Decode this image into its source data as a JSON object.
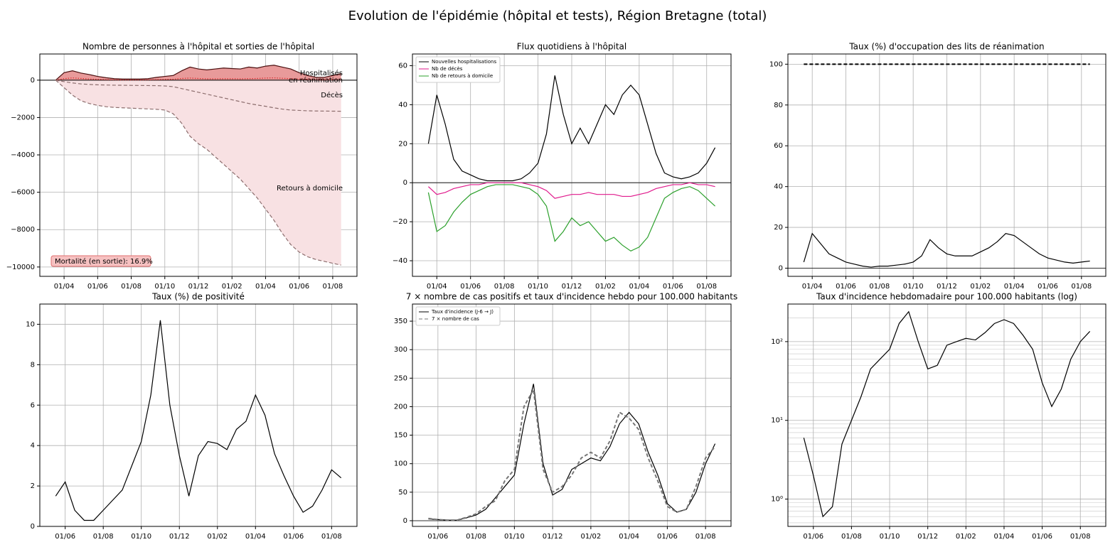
{
  "title": "Evolution de l'épidémie (hôpital et tests), Région Bretagne (total)",
  "chart_data": [
    {
      "type": "area",
      "title": "Nombre de personnes à l'hôpital et sorties de l'hôpital",
      "categories": [
        null,
        "01/04",
        null,
        null,
        null,
        "01/06",
        null,
        null,
        null,
        "01/08",
        null,
        null,
        null,
        "01/10",
        null,
        null,
        null,
        "01/12",
        null,
        null,
        null,
        "01/02",
        null,
        null,
        null,
        "01/04",
        null,
        null,
        null,
        "01/06",
        null,
        null,
        null,
        "01/08",
        null
      ],
      "series": [
        {
          "name": "Hospitalisés",
          "color": "#4a0f0f",
          "fill": "#e89a9a",
          "linestyle": "solid",
          "values": [
            0,
            400,
            500,
            380,
            300,
            200,
            130,
            80,
            60,
            60,
            60,
            80,
            150,
            200,
            250,
            500,
            700,
            600,
            550,
            600,
            650,
            620,
            600,
            700,
            650,
            750,
            800,
            700,
            600,
            400,
            250,
            150,
            150,
            250,
            350
          ]
        },
        {
          "name": "en réanimation",
          "color": "#d62728",
          "linestyle": "dotted",
          "values": [
            0,
            80,
            120,
            90,
            60,
            40,
            25,
            15,
            10,
            10,
            10,
            15,
            25,
            35,
            50,
            90,
            110,
            90,
            70,
            70,
            75,
            75,
            70,
            80,
            90,
            110,
            120,
            100,
            80,
            60,
            40,
            25,
            20,
            25,
            30
          ]
        },
        {
          "name": "Décès",
          "color": "#8c6d6d",
          "linestyle": "dashed",
          "values": [
            0,
            -80,
            -150,
            -200,
            -230,
            -250,
            -260,
            -270,
            -275,
            -280,
            -285,
            -290,
            -295,
            -310,
            -350,
            -450,
            -550,
            -650,
            -750,
            -850,
            -950,
            -1050,
            -1150,
            -1250,
            -1330,
            -1400,
            -1480,
            -1550,
            -1600,
            -1620,
            -1640,
            -1650,
            -1655,
            -1660,
            -1665
          ]
        },
        {
          "name": "Retours à domicile",
          "color": "#8c6d6d",
          "fill": "#f8e1e3",
          "linestyle": "dashed",
          "values": [
            0,
            -400,
            -800,
            -1100,
            -1250,
            -1350,
            -1420,
            -1460,
            -1480,
            -1500,
            -1520,
            -1540,
            -1560,
            -1600,
            -1800,
            -2300,
            -3000,
            -3400,
            -3700,
            -4100,
            -4500,
            -4900,
            -5300,
            -5800,
            -6300,
            -6900,
            -7500,
            -8200,
            -8800,
            -9200,
            -9450,
            -9600,
            -9700,
            -9800,
            -9900
          ]
        }
      ],
      "series_labels": "inline",
      "annotation": "Mortalité (en sortie): 16.9%",
      "ylim": [
        -10500,
        1400
      ],
      "yticks": [
        0,
        {
          "value": -2000,
          "label": "−2000"
        },
        {
          "value": -4000,
          "label": "−4000"
        },
        {
          "value": -6000,
          "label": "−6000"
        },
        {
          "value": -8000,
          "label": "−8000"
        },
        {
          "value": -10000,
          "label": "−10000"
        }
      ],
      "grid": true
    },
    {
      "type": "line",
      "title": "Flux quotidiens à l'hôpital",
      "categories": [
        null,
        "01/04",
        null,
        null,
        null,
        "01/06",
        null,
        null,
        null,
        "01/08",
        null,
        null,
        null,
        "01/10",
        null,
        null,
        null,
        "01/12",
        null,
        null,
        null,
        "01/02",
        null,
        null,
        null,
        "01/04",
        null,
        null,
        null,
        "01/06",
        null,
        null,
        null,
        "01/08",
        null
      ],
      "series": [
        {
          "name": "Nouvelles hospitalisations",
          "color": "#000000",
          "linestyle": "solid",
          "values": [
            20,
            45,
            30,
            12,
            6,
            4,
            2,
            1,
            1,
            1,
            1,
            2,
            5,
            10,
            25,
            55,
            35,
            20,
            28,
            20,
            30,
            40,
            35,
            45,
            50,
            45,
            30,
            15,
            5,
            3,
            2,
            3,
            5,
            10,
            18
          ]
        },
        {
          "name": "Nb de décès",
          "color": "#e0198c",
          "linestyle": "solid",
          "values": [
            -2,
            -6,
            -5,
            -3,
            -2,
            -1,
            -1,
            0,
            0,
            0,
            0,
            0,
            -1,
            -2,
            -4,
            -8,
            -7,
            -6,
            -6,
            -5,
            -6,
            -6,
            -6,
            -7,
            -7,
            -6,
            -5,
            -3,
            -2,
            -1,
            -1,
            0,
            -1,
            -1,
            -2
          ]
        },
        {
          "name": "Nb de retours à domicile",
          "color": "#2ca02c",
          "linestyle": "solid",
          "values": [
            -5,
            -25,
            -22,
            -15,
            -10,
            -6,
            -4,
            -2,
            -1,
            -1,
            -1,
            -2,
            -3,
            -6,
            -12,
            -30,
            -25,
            -18,
            -22,
            -20,
            -25,
            -30,
            -28,
            -32,
            -35,
            -33,
            -28,
            -18,
            -8,
            -5,
            -3,
            -2,
            -4,
            -8,
            -12
          ]
        }
      ],
      "legend": "upper left",
      "ylim": [
        -48,
        66
      ],
      "yticks": [
        {
          "value": -40,
          "label": "−40"
        },
        {
          "value": -20,
          "label": "−20"
        },
        0,
        20,
        40,
        60
      ],
      "grid": true
    },
    {
      "type": "line",
      "title": "Taux (%) d'occupation des lits de réanimation",
      "categories": [
        null,
        "01/04",
        null,
        null,
        null,
        "01/06",
        null,
        null,
        null,
        "01/08",
        null,
        null,
        null,
        "01/10",
        null,
        null,
        null,
        "01/12",
        null,
        null,
        null,
        "01/02",
        null,
        null,
        null,
        "01/04",
        null,
        null,
        null,
        "01/06",
        null,
        null,
        null,
        "01/08",
        null
      ],
      "series": [
        {
          "color": "#000000",
          "linestyle": "dashed",
          "values": [
            100,
            100,
            100,
            100,
            100,
            100,
            100,
            100,
            100,
            100,
            100,
            100,
            100,
            100,
            100,
            100,
            100,
            100,
            100,
            100,
            100,
            100,
            100,
            100,
            100,
            100,
            100,
            100,
            100,
            100,
            100,
            100,
            100,
            100,
            100
          ]
        },
        {
          "color": "#000000",
          "linestyle": "solid",
          "values": [
            3,
            17,
            12,
            7,
            5,
            3,
            2,
            1,
            0.5,
            1,
            1,
            1.5,
            2,
            3,
            6,
            14,
            10,
            7,
            6,
            6,
            6,
            8,
            10,
            13,
            17,
            16,
            13,
            10,
            7,
            5,
            4,
            3,
            2.5,
            3,
            3.5
          ]
        }
      ],
      "ylim": [
        -4,
        105
      ],
      "yticks": [
        0,
        20,
        40,
        60,
        80,
        100
      ],
      "grid": true
    },
    {
      "type": "line",
      "title": "Taux (%) de positivité",
      "categories": [
        null,
        "01/06",
        null,
        null,
        null,
        "01/08",
        null,
        null,
        null,
        "01/10",
        null,
        null,
        null,
        "01/12",
        null,
        null,
        null,
        "01/02",
        null,
        null,
        null,
        "01/04",
        null,
        null,
        null,
        "01/06",
        null,
        null,
        null,
        "01/08",
        null
      ],
      "series": [
        {
          "color": "#000000",
          "linestyle": "solid",
          "values": [
            1.5,
            2.2,
            0.8,
            0.3,
            0.3,
            0.8,
            1.3,
            1.8,
            3,
            4.2,
            6.5,
            10.2,
            6,
            3.5,
            1.5,
            3.5,
            4.2,
            4.1,
            3.8,
            4.8,
            5.2,
            6.5,
            5.5,
            3.6,
            2.5,
            1.5,
            0.7,
            1,
            1.8,
            2.8,
            2.4
          ]
        }
      ],
      "ylim": [
        0,
        11
      ],
      "yticks": [
        0,
        2,
        4,
        6,
        8,
        10
      ],
      "grid": true
    },
    {
      "type": "line",
      "title": "7 × nombre de cas positifs et taux d'incidence hebdo pour 100.000 habitants",
      "categories": [
        null,
        "01/06",
        null,
        null,
        null,
        "01/08",
        null,
        null,
        null,
        "01/10",
        null,
        null,
        null,
        "01/12",
        null,
        null,
        null,
        "01/02",
        null,
        null,
        null,
        "01/04",
        null,
        null,
        null,
        "01/06",
        null,
        null,
        null,
        "01/08",
        null
      ],
      "series": [
        {
          "name": "Taux d'incidence (J-6 → J)",
          "color": "#000000",
          "linestyle": "solid",
          "values": [
            3,
            2,
            1,
            1,
            5,
            10,
            20,
            40,
            60,
            80,
            170,
            240,
            100,
            45,
            55,
            90,
            100,
            110,
            105,
            130,
            170,
            190,
            170,
            120,
            80,
            30,
            15,
            20,
            50,
            100,
            135
          ]
        },
        {
          "name": "7 × nombre de cas",
          "color": "#777777",
          "linestyle": "dashed",
          "values": [
            4,
            2,
            1,
            1,
            6,
            12,
            25,
            35,
            70,
            90,
            200,
            230,
            90,
            50,
            60,
            80,
            110,
            120,
            110,
            140,
            190,
            180,
            160,
            110,
            70,
            25,
            15,
            20,
            60,
            110,
            130
          ]
        }
      ],
      "legend": "upper left",
      "ylim": [
        -10,
        380
      ],
      "yticks": [
        0,
        50,
        100,
        150,
        200,
        250,
        300,
        350
      ],
      "grid": true
    },
    {
      "type": "line",
      "title": "Taux d'incidence hebdomadaire pour 100.000 habitants (log)",
      "categories": [
        null,
        "01/06",
        null,
        null,
        null,
        "01/08",
        null,
        null,
        null,
        "01/10",
        null,
        null,
        null,
        "01/12",
        null,
        null,
        null,
        "01/02",
        null,
        null,
        null,
        "01/04",
        null,
        null,
        null,
        "01/06",
        null,
        null,
        null,
        "01/08",
        null
      ],
      "series": [
        {
          "color": "#000000",
          "linestyle": "solid",
          "values": [
            6,
            2,
            0.6,
            0.8,
            5,
            10,
            20,
            45,
            60,
            80,
            170,
            240,
            100,
            45,
            50,
            90,
            100,
            110,
            105,
            130,
            170,
            190,
            170,
            120,
            80,
            30,
            15,
            25,
            60,
            100,
            135
          ]
        }
      ],
      "log_scale": true,
      "ylim": [
        0.45,
        300
      ],
      "yticks": [
        {
          "value": 1,
          "label": "10⁰"
        },
        {
          "value": 10,
          "label": "10¹"
        },
        {
          "value": 100,
          "label": "10²"
        }
      ],
      "grid": true
    }
  ]
}
